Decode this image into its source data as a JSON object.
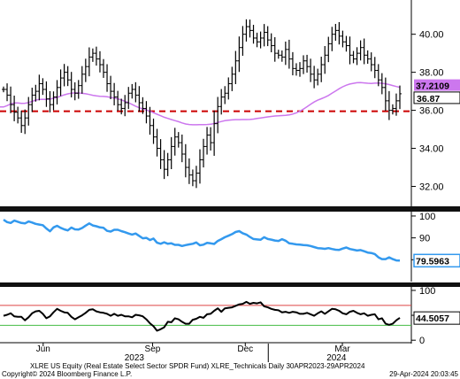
{
  "chart_data": [
    {
      "type": "ohlc",
      "panel": "price",
      "ylim": [
        31,
        41.8
      ],
      "ticks": [
        "32.00",
        "34.00",
        "36.00",
        "38.00",
        "40.00"
      ],
      "tick_values": [
        32,
        34,
        36,
        38,
        40
      ],
      "last_price_label": "36.87",
      "last_price": 36.87,
      "ma_label": "37.2109",
      "ma_value": 37.21,
      "ma_color": "#cc77ee",
      "support_level": 35.95,
      "support_color": "#cc0000",
      "bar_color": "#000000",
      "closes": [
        37.1,
        36.8,
        36.3,
        35.9,
        35.6,
        35.2,
        35.6,
        36.3,
        36.8,
        37.0,
        37.4,
        37.1,
        36.6,
        36.3,
        36.7,
        37.2,
        37.7,
        38.0,
        37.6,
        37.1,
        36.9,
        37.3,
        37.9,
        38.3,
        38.8,
        39.0,
        38.7,
        38.4,
        38.0,
        37.4,
        37.0,
        36.7,
        36.3,
        36.1,
        36.4,
        36.9,
        37.1,
        36.8,
        36.4,
        36.1,
        35.7,
        35.2,
        34.6,
        34.0,
        33.4,
        32.9,
        33.4,
        34.1,
        34.6,
        34.3,
        33.7,
        33.0,
        32.6,
        32.3,
        32.7,
        33.4,
        34.1,
        34.7,
        34.3,
        35.3,
        36.2,
        36.7,
        36.9,
        37.4,
        37.9,
        38.6,
        39.3,
        40.0,
        40.4,
        40.2,
        39.8,
        39.6,
        39.8,
        40.1,
        39.7,
        39.4,
        39.0,
        38.9,
        38.8,
        39.2,
        38.7,
        38.2,
        38.1,
        38.2,
        38.6,
        38.3,
        37.9,
        37.6,
        37.9,
        38.4,
        38.9,
        39.5,
        40.0,
        40.2,
        39.9,
        39.6,
        39.4,
        38.9,
        38.7,
        39.0,
        39.3,
        38.9,
        38.7,
        38.4,
        38.1,
        37.6,
        37.2,
        36.5,
        36.0,
        36.1,
        36.5,
        36.87
      ]
    },
    {
      "type": "line",
      "panel": "rs",
      "name": "XLRE_Technicals",
      "ylim": [
        70,
        102
      ],
      "ticks": [
        "80",
        "90",
        "100"
      ],
      "tick_values": [
        80,
        90,
        100
      ],
      "last_label": "79.5963",
      "last_value": 79.5963,
      "line_color": "#3399ee",
      "values": [
        98.3,
        97.2,
        96.8,
        97.9,
        97.4,
        96.8,
        96.6,
        97.5,
        97.0,
        96.4,
        96.1,
        95.8,
        94.3,
        93.0,
        94.8,
        95.5,
        94.6,
        93.9,
        93.4,
        94.7,
        93.9,
        93.8,
        94.5,
        95.6,
        96.6,
        95.7,
        95.3,
        94.8,
        94.6,
        93.2,
        92.9,
        93.7,
        93.7,
        93.1,
        92.6,
        92.0,
        91.5,
        92.0,
        90.9,
        89.8,
        90.0,
        89.0,
        89.7,
        87.8,
        87.3,
        88.0,
        87.3,
        87.5,
        86.8,
        86.8,
        86.3,
        86.7,
        87.0,
        87.3,
        87.9,
        86.6,
        86.9,
        87.7,
        87.5,
        87.2,
        88.6,
        89.4,
        90.3,
        91.0,
        91.7,
        92.7,
        93.1,
        92.1,
        91.5,
        90.4,
        89.5,
        89.3,
        89.1,
        90.3,
        89.5,
        89.2,
        88.8,
        88.6,
        89.4,
        88.7,
        87.5,
        87.3,
        87.0,
        86.9,
        86.7,
        86.6,
        86.3,
        85.8,
        85.3,
        85.2,
        85.0,
        85.3,
        84.9,
        84.6,
        84.5,
        85.1,
        85.6,
        84.9,
        84.6,
        84.2,
        84.4,
        83.9,
        83.3,
        83.1,
        82.6,
        81.1,
        80.3,
        80.3,
        81.1,
        80.3,
        79.7,
        79.6
      ]
    },
    {
      "type": "line",
      "panel": "rsi",
      "ylim": [
        -5,
        107
      ],
      "ticks": [
        "0",
        "50",
        "100"
      ],
      "tick_values": [
        0,
        50,
        100
      ],
      "last_label": "44.5057",
      "last_value": 44.5057,
      "overbought": 70,
      "oversold": 30,
      "overbought_color": "#dd4444",
      "oversold_color": "#44bb44",
      "line_color": "#000000",
      "values": [
        49,
        51,
        54,
        48,
        47,
        47,
        40,
        46,
        54,
        58,
        59,
        53,
        44,
        48,
        56,
        63,
        59,
        56,
        55,
        47,
        42,
        46,
        50,
        55,
        61,
        62,
        58,
        56,
        55,
        53,
        49,
        53,
        49,
        51,
        48,
        48,
        46,
        51,
        50,
        48,
        42,
        34,
        28,
        19,
        22,
        26,
        37,
        36,
        44,
        42,
        37,
        33,
        33,
        41,
        43,
        47,
        45,
        52,
        53,
        59,
        64,
        57,
        64,
        65,
        66,
        69,
        72,
        73,
        77,
        73,
        75,
        74,
        76,
        68,
        66,
        63,
        61,
        60,
        56,
        57,
        55,
        57,
        56,
        53,
        53,
        55,
        52,
        49,
        54,
        58,
        53,
        58,
        63,
        62,
        59,
        54,
        52,
        57,
        59,
        55,
        52,
        54,
        49,
        51,
        52,
        42,
        44,
        33,
        31,
        33,
        40,
        45
      ]
    }
  ],
  "x_axis": {
    "labels": [
      "Jun",
      "Sep",
      "Dec",
      "Mar"
    ],
    "years": [
      "2023",
      "2024"
    ]
  },
  "footer": {
    "title_line": "XLRE US Equity (Real Estate Select Sector SPDR Fund) XLRE_Technicals  Daily 30APR2023-29APR2024",
    "copyright": "Copyright© 2024 Bloomberg Finance L.P.",
    "timestamp": "29-Apr-2024 20:03:45"
  }
}
